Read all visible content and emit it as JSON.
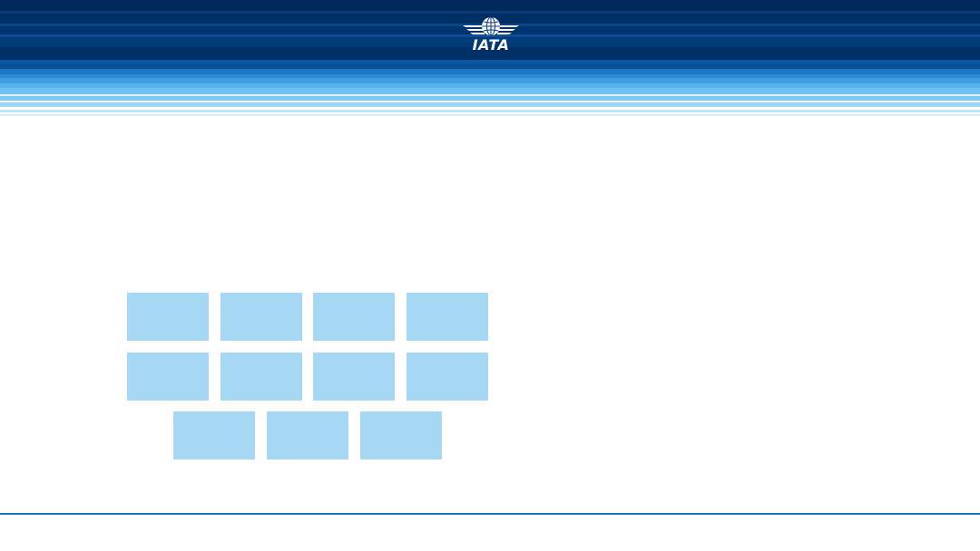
{
  "header": {
    "logo": {
      "text": "IATA",
      "icon": "iata-globe-wings-icon"
    }
  },
  "tiles": {
    "color": "#a6d7f3",
    "rows": [
      4,
      4,
      3
    ]
  },
  "colors": {
    "header_dark": "#002a5c",
    "header_light": "#6fc2f0",
    "footer_line": "#1b75b8",
    "background": "#ffffff"
  }
}
